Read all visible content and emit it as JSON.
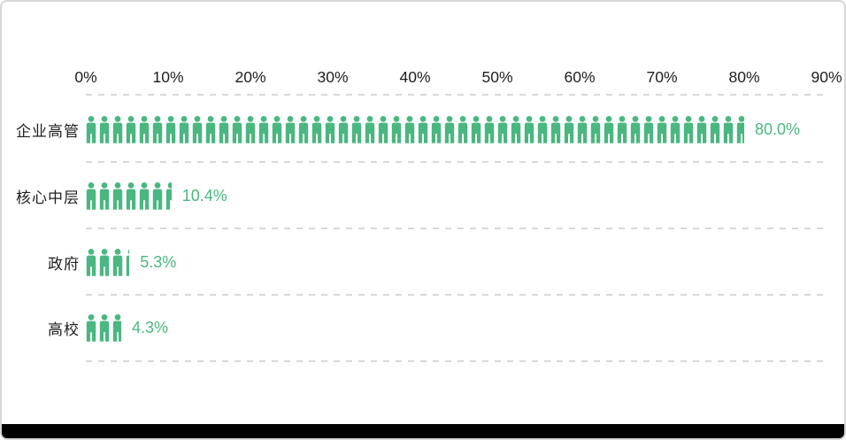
{
  "frame": {
    "background": "#ffffff",
    "border_color": "#d6d6d6",
    "bottom_bar_color": "#000000"
  },
  "chart_data": {
    "type": "bar",
    "subtype": "horizontal-pictogram",
    "title": "",
    "categories": [
      "企业高管",
      "核心中层",
      "政府",
      "高校"
    ],
    "values": [
      80.0,
      10.4,
      5.3,
      4.3
    ],
    "value_labels": [
      "80.0%",
      "10.4%",
      "5.3%",
      "4.3%"
    ],
    "x_ticks": [
      "0%",
      "10%",
      "20%",
      "30%",
      "40%",
      "50%",
      "60%",
      "70%",
      "80%",
      "90%"
    ],
    "xlim": [
      0,
      90
    ],
    "grid": true,
    "grid_style": "dashed",
    "legend": false,
    "icon": "person-icon",
    "icon_unit_percent": 1.6,
    "colors": {
      "icon_green": "#4ab780",
      "value_text": "#4ab780",
      "axis_text": "#1f1f1f",
      "category_text": "#1f1f1f",
      "grid_line": "#d8d8d8",
      "background": "#ffffff",
      "bottom_bar": "#000000"
    }
  }
}
